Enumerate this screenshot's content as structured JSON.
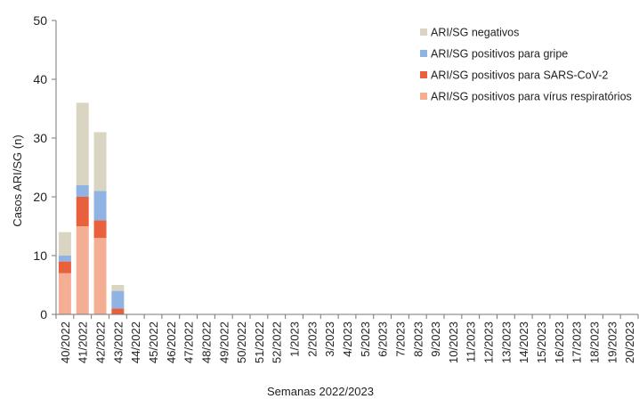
{
  "chart_data": {
    "type": "bar",
    "stacked": true,
    "xlabel": "Semanas 2022/2023",
    "ylabel": "Casos ARI/SG (n)",
    "ylim": [
      0,
      50
    ],
    "yticks": [
      0,
      10,
      20,
      30,
      40,
      50
    ],
    "grid": false,
    "legend_position": "top-right",
    "categories": [
      "40/2022",
      "41/2022",
      "42/2022",
      "43/2022",
      "44/2022",
      "45/2022",
      "46/2022",
      "47/2022",
      "48/2022",
      "49/2022",
      "50/2022",
      "51/2022",
      "52/2022",
      "1/2023",
      "2/2023",
      "3/2023",
      "4/2023",
      "5/2023",
      "6/2023",
      "7/2023",
      "8/2023",
      "9/2023",
      "10/2023",
      "11/2023",
      "12/2023",
      "13/2023",
      "14/2023",
      "15/2023",
      "16/2023",
      "17/2023",
      "18/2023",
      "19/2023",
      "20/2023"
    ],
    "series": [
      {
        "name": "ARI/SG positivos para vírus respiratórios",
        "color": "#F4AE94",
        "values": [
          7,
          15,
          13,
          0,
          0,
          0,
          0,
          0,
          0,
          0,
          0,
          0,
          0,
          0,
          0,
          0,
          0,
          0,
          0,
          0,
          0,
          0,
          0,
          0,
          0,
          0,
          0,
          0,
          0,
          0,
          0,
          0,
          0
        ]
      },
      {
        "name": "ARI/SG positivos para SARS-CoV-2",
        "color": "#E8603C",
        "values": [
          2,
          5,
          3,
          1,
          0,
          0,
          0,
          0,
          0,
          0,
          0,
          0,
          0,
          0,
          0,
          0,
          0,
          0,
          0,
          0,
          0,
          0,
          0,
          0,
          0,
          0,
          0,
          0,
          0,
          0,
          0,
          0,
          0
        ]
      },
      {
        "name": "ARI/SG positivos para gripe",
        "color": "#8FB4E3",
        "values": [
          1,
          2,
          5,
          3,
          0,
          0,
          0,
          0,
          0,
          0,
          0,
          0,
          0,
          0,
          0,
          0,
          0,
          0,
          0,
          0,
          0,
          0,
          0,
          0,
          0,
          0,
          0,
          0,
          0,
          0,
          0,
          0,
          0
        ]
      },
      {
        "name": "ARI/SG negativos",
        "color": "#DAD5C3",
        "values": [
          4,
          14,
          10,
          1,
          0,
          0,
          0,
          0,
          0,
          0,
          0,
          0,
          0,
          0,
          0,
          0,
          0,
          0,
          0,
          0,
          0,
          0,
          0,
          0,
          0,
          0,
          0,
          0,
          0,
          0,
          0,
          0,
          0
        ]
      }
    ],
    "legend_order": [
      3,
      2,
      1,
      0
    ]
  }
}
